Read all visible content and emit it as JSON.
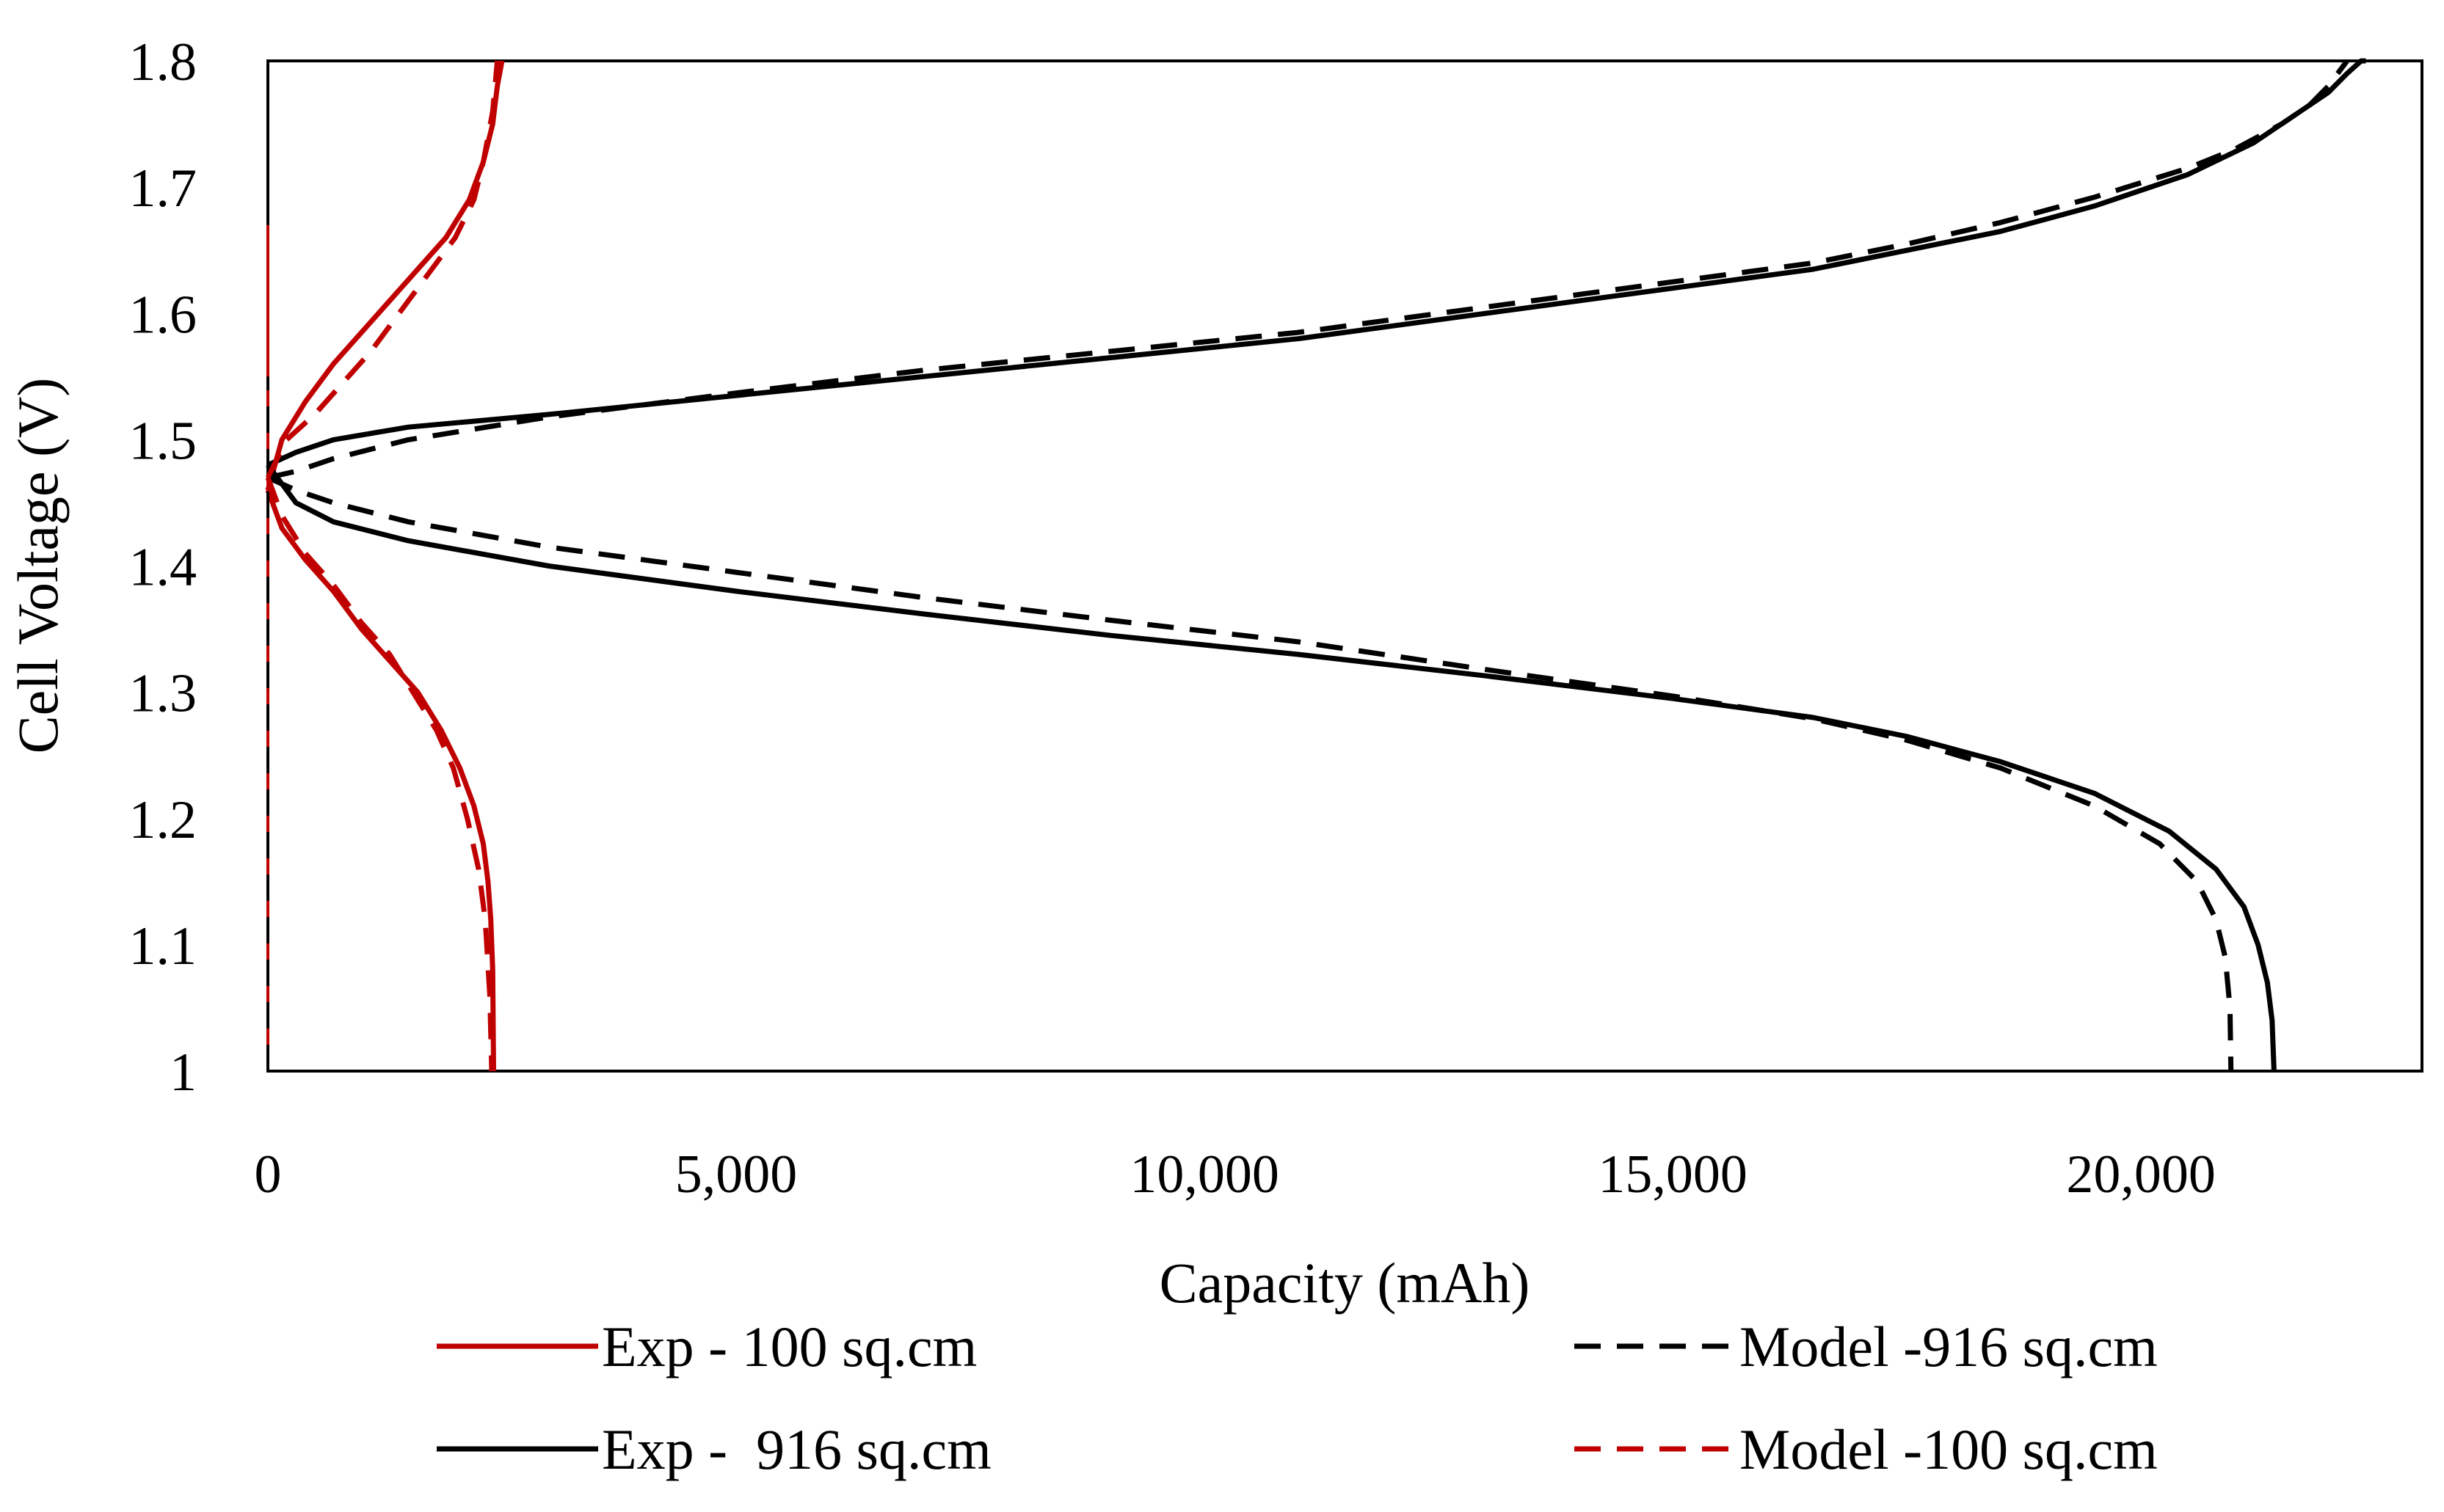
{
  "chart_data": {
    "type": "line",
    "title": "",
    "xlabel": "Capacity (mAh)",
    "ylabel": "Cell Voltage (V)",
    "xlim": [
      0,
      23000
    ],
    "ylim": [
      1.0,
      1.8
    ],
    "grid": false,
    "legend_position": "bottom",
    "x_ticks": [
      0,
      5000,
      10000,
      15000,
      20000
    ],
    "x_tick_labels": [
      "0",
      "5,000",
      "10,000",
      "15,000",
      "20,000"
    ],
    "y_ticks": [
      1.0,
      1.1,
      1.2,
      1.3,
      1.4,
      1.5,
      1.6,
      1.7,
      1.8
    ],
    "y_tick_labels": [
      "1",
      "1.1",
      "1.2",
      "1.3",
      "1.4",
      "1.5",
      "1.6",
      "1.7",
      "1.8"
    ],
    "series": [
      {
        "name": "Exp - 100 sq.cm",
        "color": "#c00000",
        "dash": "solid",
        "segments": [
          {
            "phase": "discharge",
            "x": [
              0,
              150,
              400,
              700,
              1000,
              1300,
              1600,
              1850,
              2050,
              2200,
              2300,
              2350,
              2380,
              2400,
              2410
            ],
            "y": [
              1.46,
              1.43,
              1.405,
              1.38,
              1.35,
              1.325,
              1.3,
              1.27,
              1.24,
              1.21,
              1.18,
              1.15,
              1.12,
              1.08,
              1.0
            ]
          },
          {
            "phase": "charge",
            "x": [
              0,
              150,
              400,
              700,
              1000,
              1300,
              1600,
              1900,
              2150,
              2300,
              2400,
              2450,
              2500
            ],
            "y": [
              1.46,
              1.5,
              1.53,
              1.56,
              1.585,
              1.61,
              1.635,
              1.66,
              1.69,
              1.72,
              1.75,
              1.78,
              1.8
            ]
          },
          {
            "phase": "spike",
            "x": [
              0,
              0
            ],
            "y": [
              1.0,
              1.67
            ]
          }
        ]
      },
      {
        "name": "Exp -  916 sq.cm",
        "color": "#000000",
        "dash": "solid",
        "segments": [
          {
            "phase": "discharge",
            "x": [
              0,
              300,
              700,
              1500,
              3000,
              5000,
              7000,
              9000,
              11000,
              13000,
              15000,
              16500,
              17500,
              18500,
              19500,
              20300,
              20800,
              21100,
              21250,
              21350,
              21400,
              21420
            ],
            "y": [
              1.48,
              1.45,
              1.435,
              1.42,
              1.4,
              1.38,
              1.362,
              1.345,
              1.33,
              1.313,
              1.295,
              1.28,
              1.265,
              1.245,
              1.22,
              1.19,
              1.16,
              1.13,
              1.1,
              1.07,
              1.04,
              1.0
            ]
          },
          {
            "phase": "charge",
            "x": [
              0,
              300,
              700,
              1500,
              3000,
              5000,
              7000,
              9000,
              11000,
              13000,
              15000,
              16500,
              17500,
              18500,
              19500,
              20500,
              21200,
              21700,
              22000,
              22200,
              22350,
              22400
            ],
            "y": [
              1.48,
              1.49,
              1.5,
              1.51,
              1.52,
              1.535,
              1.55,
              1.565,
              1.58,
              1.6,
              1.62,
              1.635,
              1.65,
              1.665,
              1.685,
              1.71,
              1.735,
              1.76,
              1.775,
              1.79,
              1.8,
              1.8
            ]
          }
        ]
      },
      {
        "name": "Model -916 sq.cm",
        "color": "#000000",
        "dash": "dashed",
        "segments": [
          {
            "phase": "discharge",
            "x": [
              0,
              300,
              700,
              1500,
              3000,
              5000,
              7000,
              9000,
              11000,
              13000,
              15000,
              16500,
              17500,
              18500,
              19500,
              20200,
              20600,
              20800,
              20900,
              20950,
              20960
            ],
            "y": [
              1.47,
              1.46,
              1.45,
              1.435,
              1.415,
              1.395,
              1.375,
              1.357,
              1.34,
              1.318,
              1.297,
              1.279,
              1.262,
              1.24,
              1.21,
              1.18,
              1.15,
              1.12,
              1.09,
              1.05,
              1.0
            ]
          },
          {
            "phase": "charge",
            "x": [
              0,
              300,
              700,
              1500,
              3000,
              5000,
              7000,
              9000,
              11000,
              13000,
              15000,
              16500,
              17500,
              18500,
              19500,
              20500,
              21000,
              21500,
              21800,
              22000,
              22200
            ],
            "y": [
              1.47,
              1.475,
              1.485,
              1.5,
              1.518,
              1.537,
              1.555,
              1.57,
              1.585,
              1.605,
              1.625,
              1.64,
              1.655,
              1.672,
              1.692,
              1.715,
              1.73,
              1.75,
              1.765,
              1.78,
              1.8
            ]
          },
          {
            "phase": "spike",
            "x": [
              0,
              0
            ],
            "y": [
              1.0,
              1.55
            ]
          }
        ]
      },
      {
        "name": "Model -100 sq.cm",
        "color": "#c00000",
        "dash": "dashed",
        "segments": [
          {
            "phase": "discharge",
            "x": [
              0,
              150,
              400,
              700,
              1000,
              1300,
              1550,
              1800,
              1980,
              2130,
              2250,
              2320,
              2370,
              2390
            ],
            "y": [
              1.47,
              1.44,
              1.41,
              1.385,
              1.355,
              1.33,
              1.3,
              1.27,
              1.24,
              1.2,
              1.16,
              1.12,
              1.06,
              1.0
            ]
          },
          {
            "phase": "charge",
            "x": [
              0,
              200,
              500,
              800,
              1100,
              1400,
              1700,
              2000,
              2200,
              2300,
              2400,
              2450
            ],
            "y": [
              1.47,
              1.5,
              1.52,
              1.545,
              1.57,
              1.6,
              1.63,
              1.66,
              1.69,
              1.72,
              1.76,
              1.8
            ]
          }
        ]
      }
    ]
  }
}
